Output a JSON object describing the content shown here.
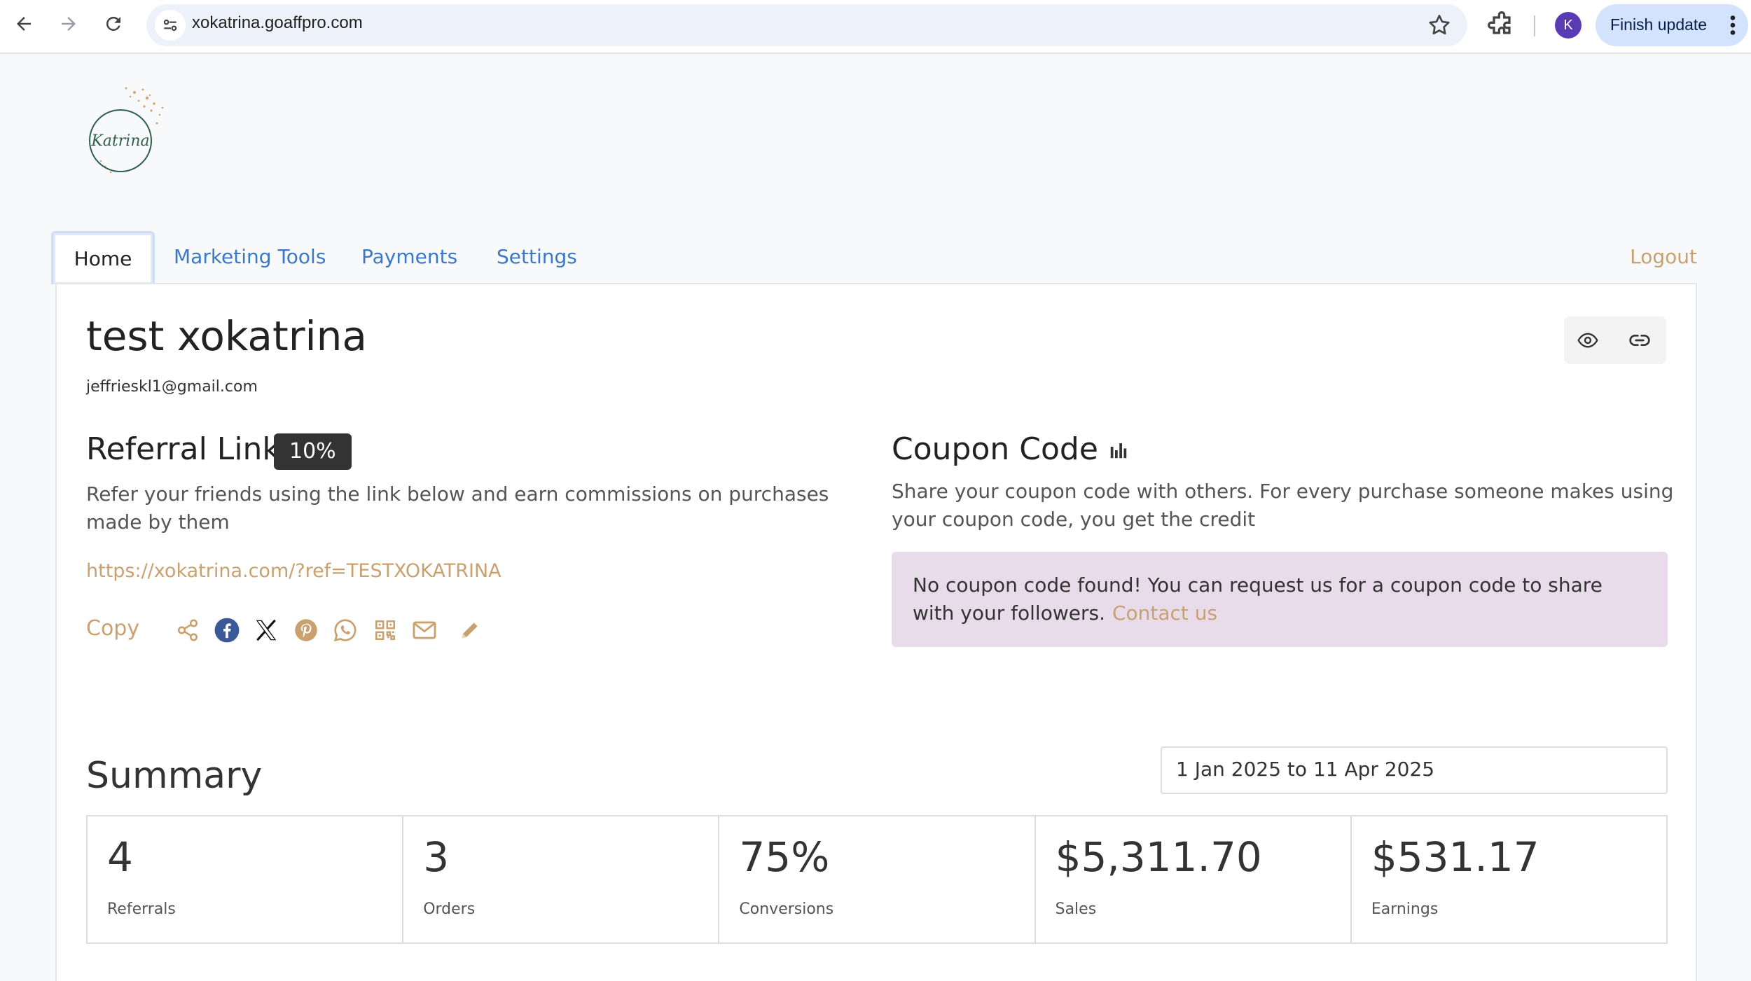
{
  "browser": {
    "url": "xokatrina.goaffpro.com",
    "profile_initial": "K",
    "finish_update_label": "Finish update"
  },
  "tabs": [
    {
      "label": "Home",
      "active": true
    },
    {
      "label": "Marketing Tools"
    },
    {
      "label": "Payments"
    },
    {
      "label": "Settings"
    }
  ],
  "logout_label": "Logout",
  "profile": {
    "name": "test xokatrina",
    "email": "jeffrieskl1@gmail.com"
  },
  "referral": {
    "title": "Referral Link",
    "commission_badge": "10%",
    "description": "Refer your friends using the link below and earn commissions on purchases made by them",
    "link": "https://xokatrina.com/?ref=TESTXOKATRINA",
    "copy_label": "Copy",
    "share_icons": [
      "share-icon",
      "facebook-icon",
      "x-icon",
      "pinterest-icon",
      "whatsapp-icon",
      "qr-code-icon",
      "email-icon",
      "pencil-icon"
    ]
  },
  "coupon": {
    "title": "Coupon Code",
    "description": "Share your coupon code with others. For every purchase someone makes using your coupon code, you get the credit",
    "alert_text": "No coupon code found! You can request us for a coupon code to share with your followers.",
    "contact_label": "Contact us"
  },
  "summary": {
    "title": "Summary",
    "date_range": "1 Jan 2025 to 11 Apr 2025",
    "stats": [
      {
        "value": "4",
        "label": "Referrals"
      },
      {
        "value": "3",
        "label": "Orders"
      },
      {
        "value": "75%",
        "label": "Conversions"
      },
      {
        "value": "$5,311.70",
        "label": "Sales"
      },
      {
        "value": "$531.17",
        "label": "Earnings"
      }
    ]
  },
  "colors": {
    "accent_gold": "#c9a16f",
    "link_blue": "#3a78c8",
    "alert_bg": "#e8dbea",
    "badge_bg": "#333333"
  }
}
